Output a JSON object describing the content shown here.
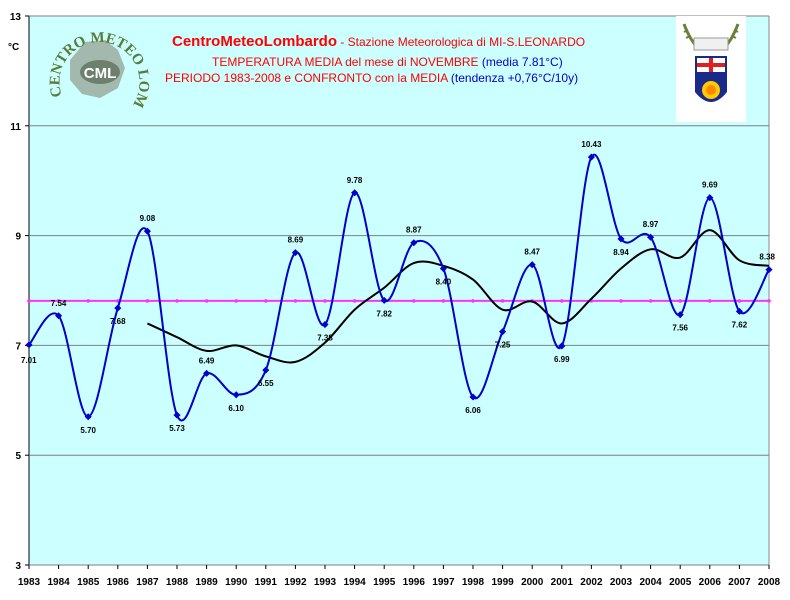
{
  "header": {
    "brand": "CentroMeteoLombardo",
    "station": " - Stazione Meteorologica di MI-S.LEONARDO",
    "line2_red": "TEMPERATURA MEDIA del mese di NOVEMBRE",
    "line2_blue": "(media 7.81°C)",
    "line3_red": "PERIODO 1983-2008 e CONFRONTO con la MEDIA",
    "line3_blue": "(tendenza +0,76°C/10y)"
  },
  "logo": {
    "text_top": "CENTRO METEO LOMBARDO",
    "initials": "CML"
  },
  "colors": {
    "plot_bg": "#ccffff",
    "series_blue": "#0000cc",
    "mean_line": "#ff33ff",
    "trend_line": "#000000",
    "brand_red": "#ff0000",
    "text_blue": "#0000cc"
  },
  "chart_data": {
    "type": "line",
    "title": "TEMPERATURA MEDIA del mese di NOVEMBRE",
    "ylabel": "°C",
    "xlabel": "",
    "ylim": [
      3,
      13
    ],
    "yticks": [
      3,
      5,
      7,
      9,
      11,
      13
    ],
    "grid": "horizontal",
    "categories": [
      "1983",
      "1984",
      "1985",
      "1986",
      "1987",
      "1988",
      "1989",
      "1990",
      "1991",
      "1992",
      "1993",
      "1994",
      "1995",
      "1996",
      "1997",
      "1998",
      "1999",
      "2000",
      "2001",
      "2002",
      "2003",
      "2004",
      "2005",
      "2006",
      "2007",
      "2008"
    ],
    "series": [
      {
        "kind": "temperature",
        "values": [
          7.01,
          7.54,
          5.7,
          7.68,
          9.08,
          5.73,
          6.49,
          6.1,
          6.55,
          8.69,
          7.38,
          9.78,
          7.82,
          8.87,
          8.4,
          6.06,
          7.25,
          8.47,
          6.99,
          10.43,
          8.94,
          8.97,
          7.56,
          9.69,
          7.62,
          8.38
        ],
        "labels": [
          "7.01",
          "7.54",
          "5.70",
          "7.68",
          "9.08",
          "5.73",
          "6.49",
          "6.10",
          "6.55",
          "8.69",
          "7.38",
          "9.78",
          "7.82",
          "8.87",
          "8.40",
          "6.06",
          "7.25",
          "8.47",
          "6.99",
          "10.43",
          "8.94",
          "8.97",
          "7.56",
          "9.69",
          "7.62",
          "8.38"
        ]
      },
      {
        "kind": "mean",
        "value": 7.81
      },
      {
        "kind": "moving-average",
        "values": [
          null,
          null,
          null,
          null,
          7.4,
          7.15,
          6.9,
          7.0,
          6.8,
          6.7,
          7.05,
          7.65,
          8.05,
          8.5,
          8.45,
          8.2,
          7.65,
          7.8,
          7.4,
          7.85,
          8.4,
          8.75,
          8.6,
          9.1,
          8.55,
          8.45
        ]
      }
    ]
  }
}
